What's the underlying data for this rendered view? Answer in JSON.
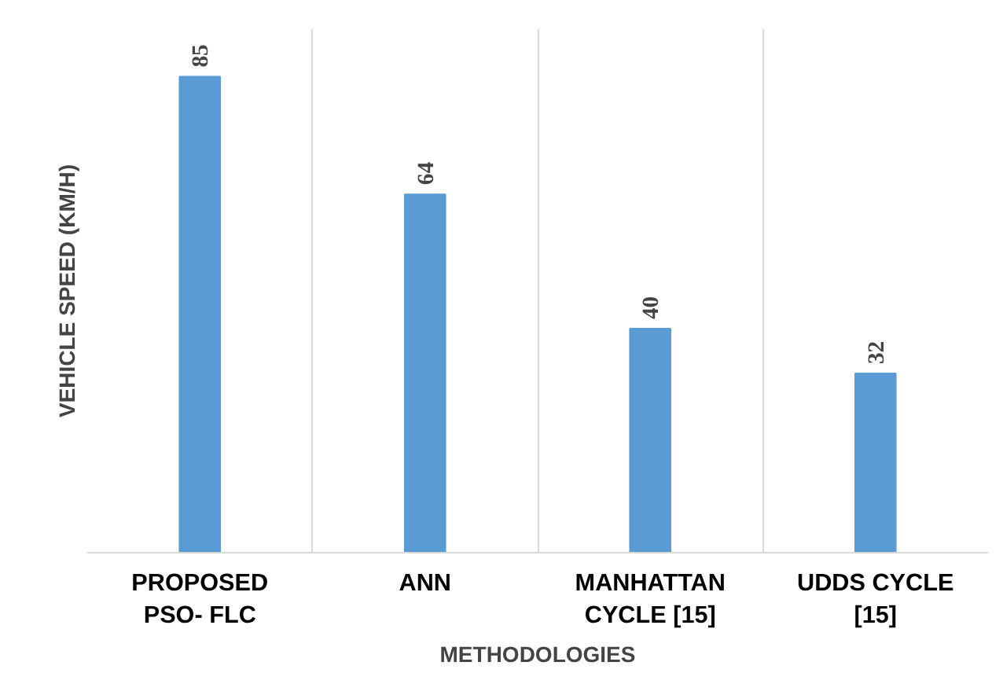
{
  "chart_data": {
    "type": "bar",
    "xlabel": "METHODOLOGIES",
    "ylabel": "VEHICLE SPEED (KM/H)",
    "categories": [
      "PROPOSED\nPSO- FLC",
      "ANN",
      "MANHATTAN\nCYCLE [15]",
      "UDDS CYCLE\n[15]"
    ],
    "values": [
      85,
      64,
      40,
      32
    ],
    "color": "#5b9bd5",
    "data_labels": true,
    "grid": "x",
    "tick_labels": "x"
  }
}
